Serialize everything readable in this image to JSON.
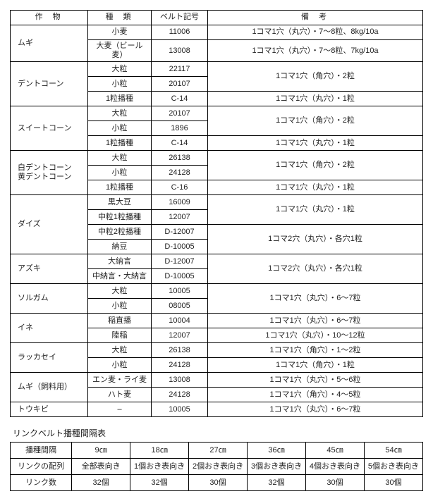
{
  "headers": {
    "crop": "作物",
    "type": "種類",
    "belt": "ベルト記号",
    "note": "備考"
  },
  "rows": [
    {
      "crop": "ムギ",
      "sub": [
        {
          "type": "小麦",
          "belt": "11006",
          "note": "1コマ1穴（丸穴）・7〜8粒、8kg/10a"
        },
        {
          "type": "大麦（ビール麦）",
          "belt": "13008",
          "note": "1コマ1穴（丸穴）・7〜8粒、7kg/10a"
        }
      ]
    },
    {
      "crop": "デントコーン",
      "sub": [
        {
          "type": "大粒",
          "belt": "22117",
          "noteRowspan": 2,
          "note": "1コマ1穴（角穴）・2粒"
        },
        {
          "type": "小粒",
          "belt": "20107"
        },
        {
          "type": "1粒播種",
          "belt": "C-14",
          "note": "1コマ1穴（丸穴）・1粒"
        }
      ]
    },
    {
      "crop": "スイートコーン",
      "sub": [
        {
          "type": "大粒",
          "belt": "20107",
          "noteRowspan": 2,
          "note": "1コマ1穴（角穴）・2粒"
        },
        {
          "type": "小粒",
          "belt": "1896"
        },
        {
          "type": "1粒播種",
          "belt": "C-14",
          "note": "1コマ1穴（丸穴）・1粒"
        }
      ]
    },
    {
      "crop": "白デントコーン\n黄デントコーン",
      "sub": [
        {
          "type": "大粒",
          "belt": "26138",
          "noteRowspan": 2,
          "note": "1コマ1穴（角穴）・2粒"
        },
        {
          "type": "小粒",
          "belt": "24128"
        },
        {
          "type": "1粒播種",
          "belt": "C-16",
          "note": "1コマ1穴（丸穴）・1粒"
        }
      ]
    },
    {
      "crop": "ダイズ",
      "sub": [
        {
          "type": "黒大豆",
          "belt": "16009",
          "noteRowspan": 2,
          "note": "1コマ1穴（丸穴）・1粒"
        },
        {
          "type": "中粒1粒播種",
          "belt": "12007"
        },
        {
          "type": "中粒2粒播種",
          "belt": "D-12007",
          "noteRowspan": 2,
          "note": "1コマ2穴（丸穴）・各穴1粒"
        },
        {
          "type": "納豆",
          "belt": "D-10005"
        }
      ]
    },
    {
      "crop": "アズキ",
      "sub": [
        {
          "type": "大納言",
          "belt": "D-12007",
          "noteRowspan": 2,
          "note": "1コマ2穴（丸穴）・各穴1粒"
        },
        {
          "type": "中納言・大納言",
          "belt": "D-10005"
        }
      ]
    },
    {
      "crop": "ソルガム",
      "sub": [
        {
          "type": "大粒",
          "belt": "10005",
          "noteRowspan": 2,
          "note": "1コマ1穴（丸穴）・6〜7粒"
        },
        {
          "type": "小粒",
          "belt": "08005"
        }
      ]
    },
    {
      "crop": "イネ",
      "sub": [
        {
          "type": "稲直播",
          "belt": "10004",
          "note": "1コマ1穴（丸穴）・6〜7粒"
        },
        {
          "type": "陸稲",
          "belt": "12007",
          "note": "1コマ1穴（丸穴）・10〜12粒"
        }
      ]
    },
    {
      "crop": "ラッカセイ",
      "sub": [
        {
          "type": "大粒",
          "belt": "26138",
          "note": "1コマ1穴（角穴）・1〜2粒"
        },
        {
          "type": "小粒",
          "belt": "24128",
          "note": "1コマ1穴（角穴）・1粒"
        }
      ]
    },
    {
      "crop": "ムギ（飼料用）",
      "sub": [
        {
          "type": "エン麦・ライ麦",
          "belt": "13008",
          "note": "1コマ1穴（丸穴）・5〜6粒"
        },
        {
          "type": "ハト麦",
          "belt": "24128",
          "note": "1コマ1穴（角穴）・4〜5粒"
        }
      ]
    },
    {
      "crop": "トウキビ",
      "sub": [
        {
          "type": "–",
          "belt": "10005",
          "note": "1コマ1穴（丸穴）・6〜7粒"
        }
      ]
    }
  ],
  "table2": {
    "title": "リンクベルト播種間隔表",
    "r1": [
      "播種間隔",
      "9㎝",
      "18㎝",
      "27㎝",
      "36㎝",
      "45㎝",
      "54㎝"
    ],
    "r2": [
      "リンクの配列",
      "全部表向き",
      "1個おき表向き",
      "2個おき表向き",
      "3個おき表向き",
      "4個おき表向き",
      "5個おき表向き"
    ],
    "r3": [
      "リンク数",
      "32個",
      "32個",
      "30個",
      "32個",
      "30個",
      "30個"
    ]
  }
}
